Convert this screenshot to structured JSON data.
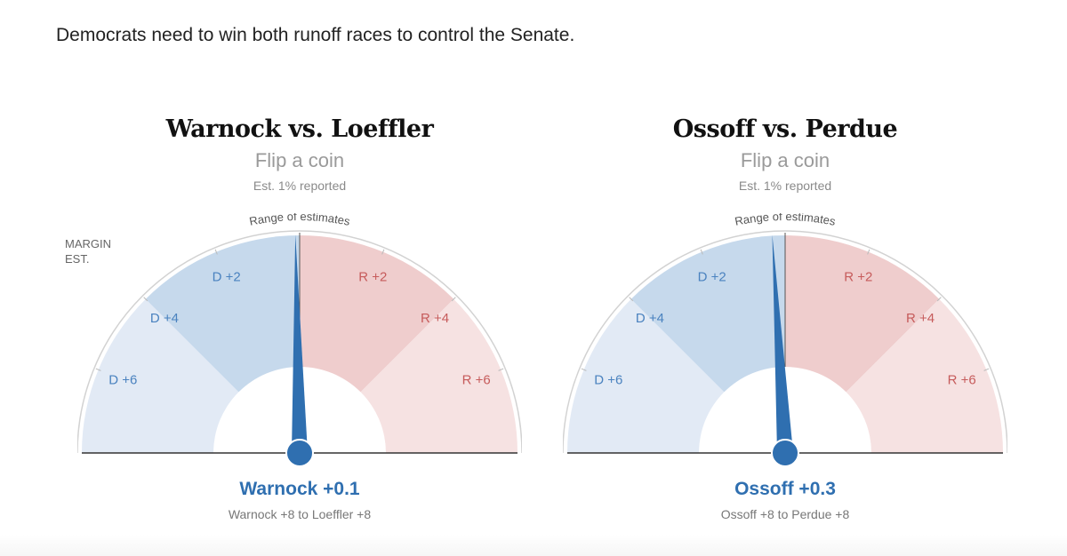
{
  "intro": "Democrats need to win both runoff races to control the Senate.",
  "margin_label": {
    "line1": "MARGIN",
    "line2": "EST."
  },
  "colors": {
    "dem_dark": "#c6d9ec",
    "dem_light": "#e2eaf5",
    "rep_dark": "#efcdcd",
    "rep_light": "#f6e2e2",
    "needle": "#2f6fb0",
    "dem_text": "#4a82bf",
    "rep_text": "#c65b5b",
    "outline": "#d2d2d2"
  },
  "chart_data": [
    {
      "type": "gauge",
      "title": "Warnock vs. Loeffler",
      "subtitle": "Flip a coin",
      "reported": "Est. 1% reported",
      "range_label": "Range of estimates",
      "scale_range": [
        -8,
        8
      ],
      "tick_labels": [
        {
          "value": -6,
          "label": "D +6",
          "party": "D"
        },
        {
          "value": -4,
          "label": "D +4",
          "party": "D"
        },
        {
          "value": -2,
          "label": "D +2",
          "party": "D"
        },
        {
          "value": 2,
          "label": "R +2",
          "party": "R"
        },
        {
          "value": 4,
          "label": "R +4",
          "party": "R"
        },
        {
          "value": 6,
          "label": "R +6",
          "party": "R"
        }
      ],
      "needle_value": -0.1,
      "result": "Warnock +0.1",
      "range_text": "Warnock +8 to Loeffler +8"
    },
    {
      "type": "gauge",
      "title": "Ossoff vs. Perdue",
      "subtitle": "Flip a coin",
      "reported": "Est. 1% reported",
      "range_label": "Range of estimates",
      "scale_range": [
        -8,
        8
      ],
      "tick_labels": [
        {
          "value": -6,
          "label": "D +6",
          "party": "D"
        },
        {
          "value": -4,
          "label": "D +4",
          "party": "D"
        },
        {
          "value": -2,
          "label": "D +2",
          "party": "D"
        },
        {
          "value": 2,
          "label": "R +2",
          "party": "R"
        },
        {
          "value": 4,
          "label": "R +4",
          "party": "R"
        },
        {
          "value": 6,
          "label": "R +6",
          "party": "R"
        }
      ],
      "needle_value": -0.3,
      "result": "Ossoff +0.3",
      "range_text": "Ossoff +8 to Perdue +8"
    }
  ]
}
